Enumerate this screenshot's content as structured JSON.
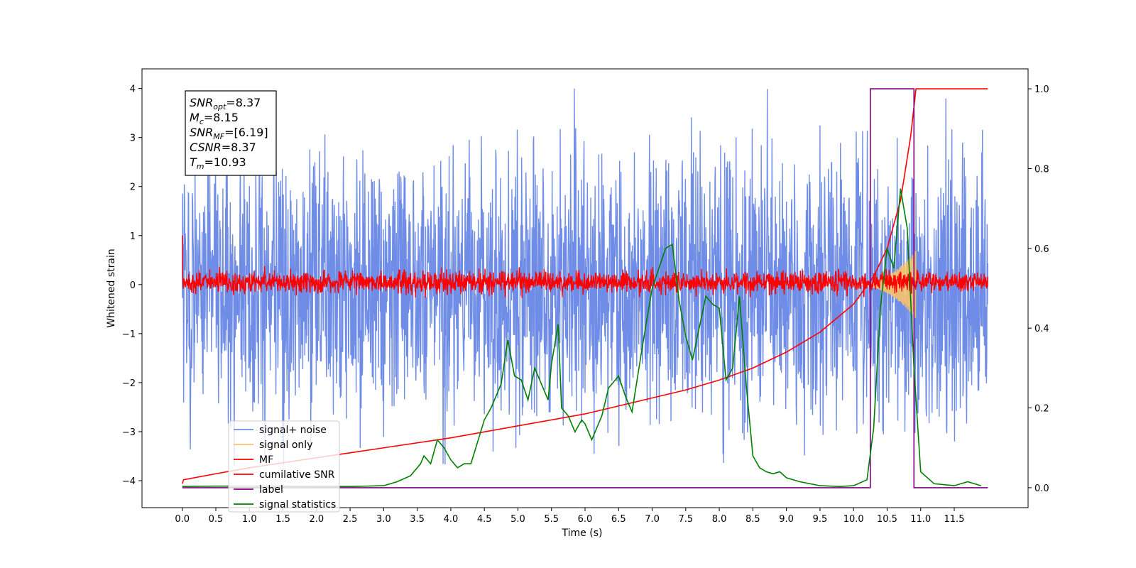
{
  "chart_data": {
    "type": "line",
    "xlabel": "Time (s)",
    "ylabel_left": "Whitened strain",
    "ylabel_right": "",
    "xlim": [
      -0.6,
      12.6
    ],
    "ylim_left": [
      -4.55,
      4.4
    ],
    "ylim_right": [
      -0.05,
      1.05
    ],
    "x_ticks": [
      "0.0",
      "0.5",
      "1.0",
      "1.5",
      "2.0",
      "2.5",
      "3.0",
      "3.5",
      "4.0",
      "4.5",
      "5.0",
      "5.5",
      "6.0",
      "6.5",
      "7.0",
      "7.5",
      "8.0",
      "8.5",
      "9.0",
      "9.5",
      "10.0",
      "10.5",
      "11.0",
      "11.5"
    ],
    "y_ticks_left": [
      "4",
      "3",
      "2",
      "1",
      "0",
      "−1",
      "−2",
      "−3",
      "−4"
    ],
    "y_ticks_right": [
      "1.0",
      "0.8",
      "0.6",
      "0.4",
      "0.2",
      "0.0"
    ],
    "grid": false,
    "legend_position": "lower-left",
    "annotation": {
      "lines": [
        {
          "base": "SNR",
          "sub": "opt",
          "value": "=8.37"
        },
        {
          "base": "M",
          "sub": "c",
          "value": "=8.15"
        },
        {
          "base": "SNR",
          "sub": "MF",
          "value": "=[6.19]"
        },
        {
          "base": "CSNR",
          "sub": "",
          "value": "=8.37"
        },
        {
          "base": "T",
          "sub": "m",
          "value": "=10.93"
        }
      ]
    },
    "series": [
      {
        "name": "signal+ noise",
        "color": "#6f8de6",
        "axis": "left",
        "style": "noise",
        "t_range": [
          0,
          12
        ],
        "approx_amplitude": 1.9,
        "peak_max": 4.0,
        "peak_min": -4.1
      },
      {
        "name": "signal only",
        "color": "#f5c26b",
        "axis": "left",
        "style": "chirp",
        "t_range": [
          10.0,
          10.93
        ],
        "peak_amplitude": 0.7
      },
      {
        "name": "MF",
        "color": "#ff0000",
        "axis": "left",
        "style": "noise",
        "t_range": [
          0,
          12
        ],
        "center": 0.05,
        "approx_amplitude": 0.22,
        "start_value": 1.0
      },
      {
        "name": "cumilative SNR",
        "color": "#ff0000",
        "axis": "right",
        "x": [
          0.0,
          0.02,
          0.5,
          1.0,
          2.0,
          3.0,
          4.0,
          5.0,
          6.0,
          7.0,
          7.5,
          8.0,
          8.5,
          9.0,
          9.5,
          10.0,
          10.3,
          10.5,
          10.7,
          10.85,
          10.93,
          11.0,
          11.5,
          12.0
        ],
        "y": [
          0.01,
          0.02,
          0.035,
          0.05,
          0.075,
          0.1,
          0.125,
          0.155,
          0.185,
          0.225,
          0.245,
          0.27,
          0.3,
          0.34,
          0.39,
          0.46,
          0.53,
          0.6,
          0.72,
          0.88,
          1.0,
          1.0,
          1.0,
          1.0
        ]
      },
      {
        "name": "label",
        "color": "#800080",
        "axis": "right",
        "x": [
          0.0,
          10.25,
          10.25,
          10.9,
          10.9,
          12.0
        ],
        "y": [
          0,
          0,
          1,
          1,
          0,
          0
        ]
      },
      {
        "name": "signal statistics",
        "color": "#008000",
        "axis": "right",
        "x": [
          0.0,
          0.5,
          1.0,
          2.0,
          2.5,
          3.0,
          3.2,
          3.4,
          3.55,
          3.6,
          3.7,
          3.8,
          3.9,
          4.0,
          4.1,
          4.2,
          4.3,
          4.5,
          4.6,
          4.75,
          4.85,
          4.95,
          5.05,
          5.15,
          5.25,
          5.35,
          5.45,
          5.5,
          5.6,
          5.65,
          5.75,
          5.85,
          5.95,
          6.0,
          6.1,
          6.25,
          6.35,
          6.5,
          6.6,
          6.7,
          6.85,
          7.0,
          7.1,
          7.2,
          7.3,
          7.4,
          7.5,
          7.6,
          7.7,
          7.8,
          7.9,
          8.0,
          8.1,
          8.2,
          8.3,
          8.4,
          8.5,
          8.6,
          8.7,
          8.8,
          8.9,
          9.0,
          9.2,
          9.5,
          9.8,
          10.0,
          10.2,
          10.3,
          10.4,
          10.5,
          10.6,
          10.7,
          10.8,
          10.9,
          11.0,
          11.2,
          11.5,
          11.7,
          11.9
        ],
        "y": [
          0.003,
          0.004,
          0.004,
          0.003,
          0.003,
          0.005,
          0.015,
          0.03,
          0.06,
          0.08,
          0.06,
          0.12,
          0.1,
          0.07,
          0.05,
          0.06,
          0.06,
          0.17,
          0.2,
          0.26,
          0.37,
          0.28,
          0.27,
          0.22,
          0.3,
          0.26,
          0.22,
          0.31,
          0.41,
          0.2,
          0.18,
          0.14,
          0.17,
          0.16,
          0.12,
          0.18,
          0.25,
          0.28,
          0.23,
          0.19,
          0.35,
          0.5,
          0.55,
          0.6,
          0.61,
          0.47,
          0.38,
          0.32,
          0.4,
          0.48,
          0.46,
          0.45,
          0.27,
          0.3,
          0.48,
          0.26,
          0.08,
          0.05,
          0.04,
          0.035,
          0.04,
          0.025,
          0.015,
          0.005,
          0.003,
          0.005,
          0.02,
          0.15,
          0.45,
          0.6,
          0.55,
          0.75,
          0.65,
          0.3,
          0.04,
          0.01,
          0.005,
          0.015,
          0.005
        ]
      }
    ]
  }
}
